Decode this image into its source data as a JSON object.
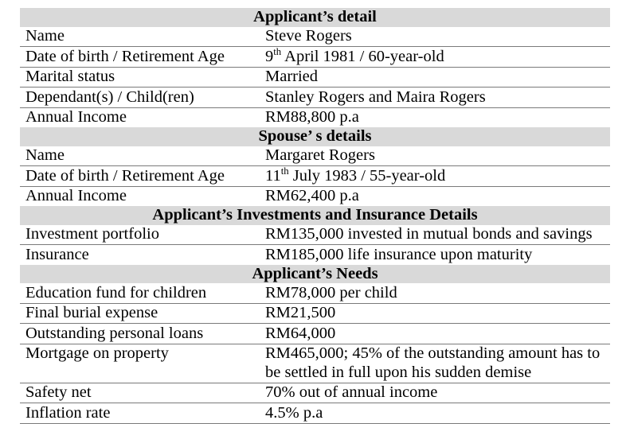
{
  "table": {
    "band_color": "#d9d9d9",
    "rule_color": "#7a7a7a",
    "sections": [
      {
        "title": "Applicant’s detail",
        "rows": [
          {
            "label": "Name",
            "value": "Steve Rogers"
          },
          {
            "label": "Date of birth / Retirement Age",
            "value_parts": [
              {
                "text": "9"
              },
              {
                "text": "th",
                "sup": true
              },
              {
                "text": " April 1981 / 60-year-old"
              }
            ]
          },
          {
            "label": "Marital status",
            "value": "Married"
          },
          {
            "label": "Dependant(s) / Child(ren)",
            "value": "Stanley Rogers and Maira Rogers"
          },
          {
            "label": "Annual Income",
            "value": "RM88,800 p.a"
          }
        ]
      },
      {
        "title": "Spouse’ s details",
        "rows": [
          {
            "label": "Name",
            "value": "Margaret Rogers"
          },
          {
            "label": "Date of birth / Retirement Age",
            "value_parts": [
              {
                "text": "11"
              },
              {
                "text": "th",
                "sup": true
              },
              {
                "text": " July 1983 / 55-year-old"
              }
            ]
          },
          {
            "label": "Annual Income",
            "value": "RM62,400 p.a"
          }
        ]
      },
      {
        "title": "Applicant’s Investments and Insurance Details",
        "rows": [
          {
            "label": "Investment portfolio",
            "value": "RM135,000 invested in mutual bonds and savings"
          },
          {
            "label": "Insurance",
            "value": "RM185,000 life insurance upon maturity"
          }
        ]
      },
      {
        "title": "Applicant’s Needs",
        "rows": [
          {
            "label": "Education fund for children",
            "value": "RM78,000 per child"
          },
          {
            "label": "Final burial expense",
            "value": "RM21,500"
          },
          {
            "label": "Outstanding personal loans",
            "value": "RM64,000"
          },
          {
            "label": "Mortgage on property",
            "value": "RM465,000; 45% of the outstanding amount has to be settled in full upon his sudden demise"
          },
          {
            "label": "Safety net",
            "value": "70% out of annual income"
          },
          {
            "label": "Inflation rate",
            "value": "4.5% p.a"
          }
        ]
      }
    ]
  }
}
